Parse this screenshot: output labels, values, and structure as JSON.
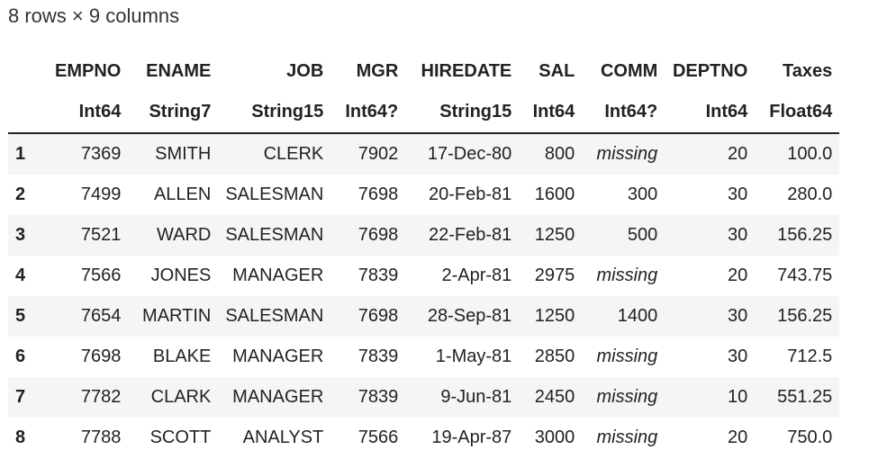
{
  "summary": "8 rows × 9 columns",
  "columns": [
    {
      "name": "EMPNO",
      "type": "Int64"
    },
    {
      "name": "ENAME",
      "type": "String7"
    },
    {
      "name": "JOB",
      "type": "String15"
    },
    {
      "name": "MGR",
      "type": "Int64?"
    },
    {
      "name": "HIREDATE",
      "type": "String15"
    },
    {
      "name": "SAL",
      "type": "Int64"
    },
    {
      "name": "COMM",
      "type": "Int64?"
    },
    {
      "name": "DEPTNO",
      "type": "Int64"
    },
    {
      "name": "Taxes",
      "type": "Float64"
    }
  ],
  "rows": [
    {
      "index": "1",
      "cells": [
        "7369",
        "SMITH",
        "CLERK",
        "7902",
        "17-Dec-80",
        "800",
        "missing",
        "20",
        "100.0"
      ]
    },
    {
      "index": "2",
      "cells": [
        "7499",
        "ALLEN",
        "SALESMAN",
        "7698",
        "20-Feb-81",
        "1600",
        "300",
        "30",
        "280.0"
      ]
    },
    {
      "index": "3",
      "cells": [
        "7521",
        "WARD",
        "SALESMAN",
        "7698",
        "22-Feb-81",
        "1250",
        "500",
        "30",
        "156.25"
      ]
    },
    {
      "index": "4",
      "cells": [
        "7566",
        "JONES",
        "MANAGER",
        "7839",
        "2-Apr-81",
        "2975",
        "missing",
        "20",
        "743.75"
      ]
    },
    {
      "index": "5",
      "cells": [
        "7654",
        "MARTIN",
        "SALESMAN",
        "7698",
        "28-Sep-81",
        "1250",
        "1400",
        "30",
        "156.25"
      ]
    },
    {
      "index": "6",
      "cells": [
        "7698",
        "BLAKE",
        "MANAGER",
        "7839",
        "1-May-81",
        "2850",
        "missing",
        "30",
        "712.5"
      ]
    },
    {
      "index": "7",
      "cells": [
        "7782",
        "CLARK",
        "MANAGER",
        "7839",
        "9-Jun-81",
        "2450",
        "missing",
        "10",
        "551.25"
      ]
    },
    {
      "index": "8",
      "cells": [
        "7788",
        "SCOTT",
        "ANALYST",
        "7566",
        "19-Apr-87",
        "3000",
        "missing",
        "20",
        "750.0"
      ]
    }
  ]
}
